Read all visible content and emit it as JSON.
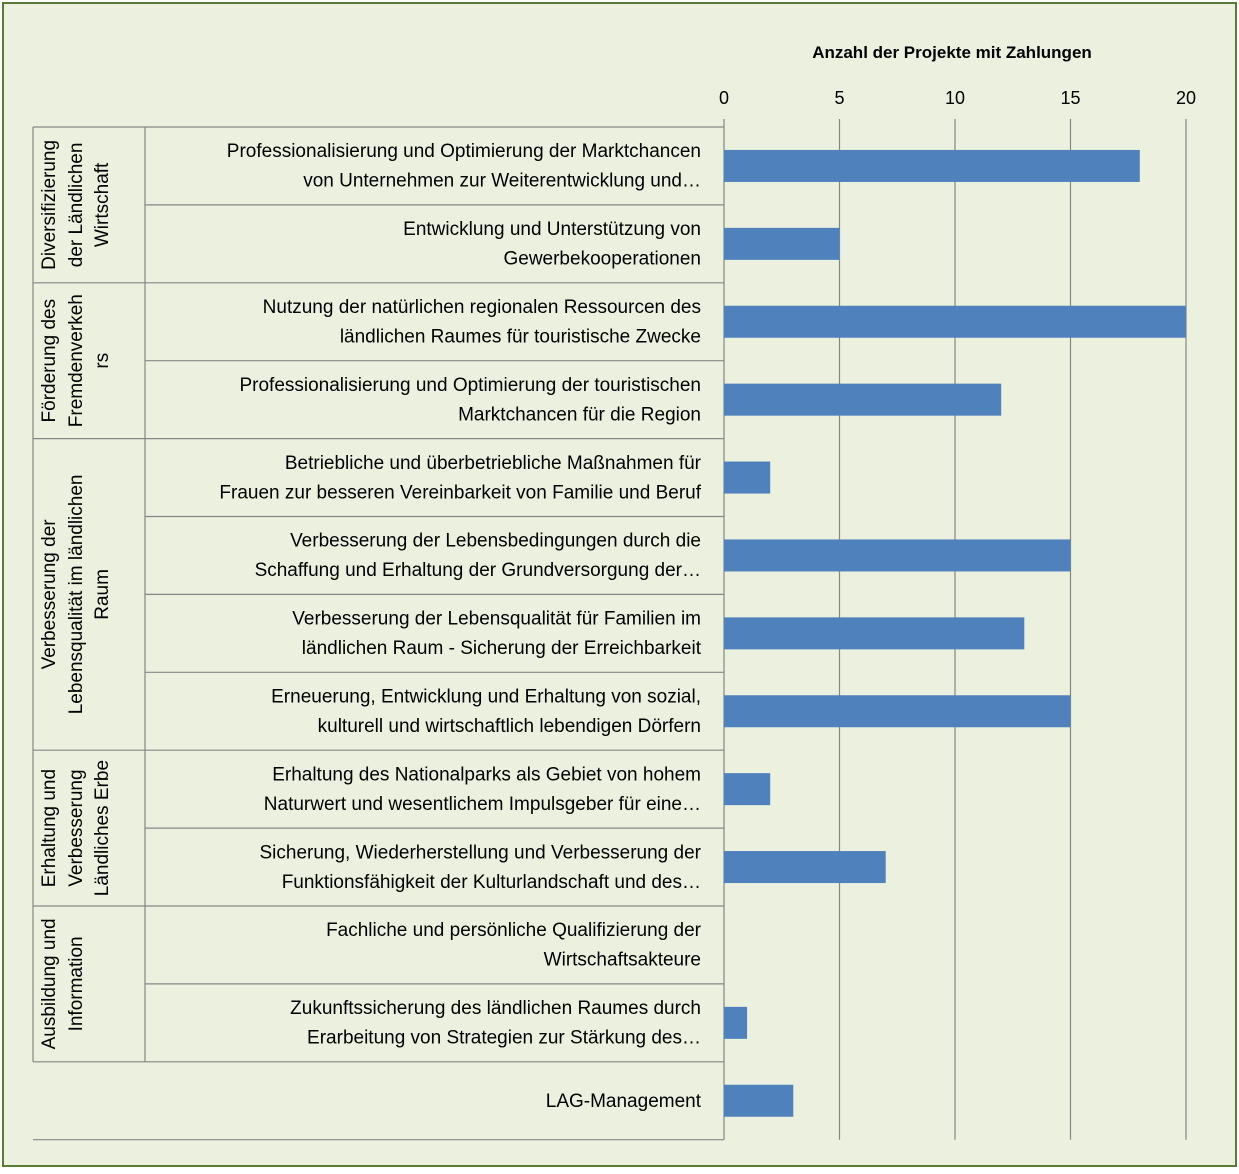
{
  "colors": {
    "background": "#ebf1de",
    "frame": "#5a7a3a",
    "bar": "#4f81bd",
    "grid": "#868686",
    "text": "#000000"
  },
  "chart_data": {
    "type": "bar",
    "orientation": "horizontal",
    "title": "",
    "xlabel": "Anzahl der Projekte mit Zahlungen",
    "ylabel": "",
    "xlim": [
      0,
      20
    ],
    "x_ticks": [
      "0",
      "5",
      "10",
      "15",
      "20"
    ],
    "axis_position": "top",
    "grid": true,
    "legend": "none",
    "groups": [
      {
        "label_lines": [
          "Diversifizierung",
          "der Ländlichen",
          "Wirtschaft"
        ],
        "items": [
          {
            "label_lines": [
              "Professionalisierung und Optimierung der Marktchancen",
              "von Unternehmen zur Weiterentwicklung und…"
            ],
            "value": 18
          },
          {
            "label_lines": [
              "Entwicklung und Unterstützung von",
              "Gewerbekooperationen"
            ],
            "value": 5
          }
        ]
      },
      {
        "label_lines": [
          "Förderung des",
          "Fremdenverkeh",
          "rs"
        ],
        "items": [
          {
            "label_lines": [
              "Nutzung der natürlichen regionalen Ressourcen des",
              "ländlichen Raumes für touristische Zwecke"
            ],
            "value": 20
          },
          {
            "label_lines": [
              "Professionalisierung und Optimierung der touristischen",
              "Marktchancen für die Region"
            ],
            "value": 12
          }
        ]
      },
      {
        "label_lines": [
          "Verbesserung der",
          "Lebensqualität im ländlichen",
          "Raum"
        ],
        "items": [
          {
            "label_lines": [
              "Betriebliche und überbetriebliche Maßnahmen für",
              "Frauen zur besseren Vereinbarkeit von Familie und Beruf"
            ],
            "value": 2
          },
          {
            "label_lines": [
              "Verbesserung der Lebensbedingungen durch die",
              "Schaffung und Erhaltung der Grundversorgung der…"
            ],
            "value": 15
          },
          {
            "label_lines": [
              "Verbesserung der Lebensqualität für Familien im",
              "ländlichen Raum - Sicherung der Erreichbarkeit"
            ],
            "value": 13
          },
          {
            "label_lines": [
              "Erneuerung, Entwicklung und Erhaltung von sozial,",
              "kulturell und wirtschaftlich lebendigen Dörfern"
            ],
            "value": 15
          }
        ]
      },
      {
        "label_lines": [
          "Erhaltung und",
          "Verbesserung",
          "Ländliches Erbe"
        ],
        "items": [
          {
            "label_lines": [
              "Erhaltung des Nationalparks als Gebiet von hohem",
              "Naturwert und wesentlichem Impulsgeber für eine…"
            ],
            "value": 2
          },
          {
            "label_lines": [
              "Sicherung, Wiederherstellung und Verbesserung der",
              "Funktionsfähigkeit der Kulturlandschaft und des…"
            ],
            "value": 7
          }
        ]
      },
      {
        "label_lines": [
          "Ausbildung und",
          "Information"
        ],
        "items": [
          {
            "label_lines": [
              "Fachliche und persönliche Qualifizierung der",
              "Wirtschaftsakteure"
            ],
            "value": 0
          },
          {
            "label_lines": [
              "Zukunftssicherung des ländlichen Raumes durch",
              "Erarbeitung von Strategien zur Stärkung des…"
            ],
            "value": 1
          }
        ]
      },
      {
        "label_lines": [],
        "items": [
          {
            "label_lines": [
              "LAG-Management"
            ],
            "value": 3
          }
        ]
      }
    ]
  }
}
